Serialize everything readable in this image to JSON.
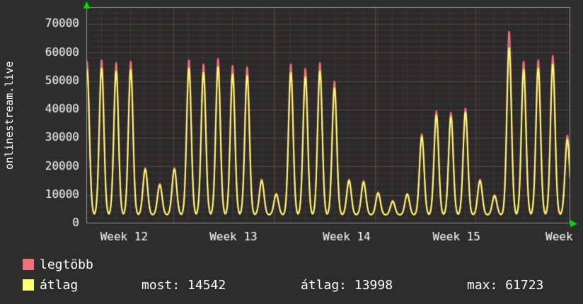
{
  "ylabel": "onlinestream.live",
  "legend": [
    {
      "label": "legtöbb",
      "color": "#f0737b"
    },
    {
      "label": "átlag",
      "color": "#ffff72"
    }
  ],
  "stats": {
    "most": "most: 14542",
    "atlag": "átlag: 13998",
    "max": "max: 61723"
  },
  "chart_data": {
    "type": "line",
    "ylabel": "onlinestream.live",
    "ylim": [
      0,
      76000
    ],
    "y_ticks": [
      0,
      10000,
      20000,
      30000,
      40000,
      50000,
      60000,
      70000
    ],
    "x_ticks": [
      {
        "label": "Week 12",
        "pos": 0.078
      },
      {
        "label": "Week 13",
        "pos": 0.304
      },
      {
        "label": "Week 14",
        "pos": 0.538
      },
      {
        "label": "Week 15",
        "pos": 0.765
      },
      {
        "label": "Week",
        "pos": 0.977
      }
    ],
    "window_days": 33.25,
    "peak_offset": 0.05,
    "sigma": 0.22,
    "night_low": 3000,
    "grid": {
      "minor_y_step": 2000,
      "major_y_step": 10000,
      "week_boundaries": [
        0.18,
        0.388,
        0.596,
        0.804
      ],
      "minor_color": "#3e3434",
      "major_color": "#5e4444",
      "frame_color": "#999999",
      "plot_bg": "#2a2a2a",
      "arrow_color": "#00dd00",
      "text_color": "#ffffff"
    },
    "series": [
      {
        "name": "legtöbb",
        "color": "#f0737b",
        "daily_peaks": [
          57000,
          57500,
          56500,
          57000,
          19500,
          14000,
          19500,
          57500,
          56000,
          58000,
          55500,
          55000,
          15500,
          10500,
          56000,
          54500,
          56500,
          50000,
          15500,
          15000,
          11000,
          8000,
          10500,
          31500,
          39500,
          39000,
          40500,
          15500,
          10000,
          67500,
          57000,
          57500,
          59000,
          31000
        ]
      },
      {
        "name": "átlag",
        "color": "#ffff72",
        "daily_peaks": [
          54000,
          54500,
          53500,
          54000,
          19000,
          13500,
          19000,
          54500,
          53000,
          55000,
          52500,
          52000,
          15000,
          10200,
          53000,
          51500,
          53500,
          47500,
          15000,
          14500,
          10600,
          7700,
          10200,
          30500,
          38000,
          37500,
          39000,
          15000,
          9700,
          61723,
          54000,
          54500,
          56000,
          29500
        ]
      }
    ],
    "stats": {
      "most": 14542,
      "atlag": 13998,
      "max": 61723
    }
  }
}
